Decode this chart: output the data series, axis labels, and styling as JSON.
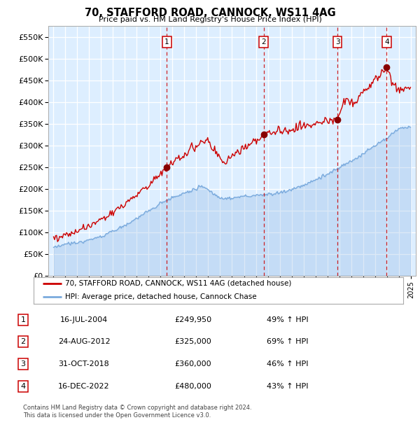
{
  "title": "70, STAFFORD ROAD, CANNOCK, WS11 4AG",
  "subtitle": "Price paid vs. HM Land Registry's House Price Index (HPI)",
  "legend_line1": "70, STAFFORD ROAD, CANNOCK, WS11 4AG (detached house)",
  "legend_line2": "HPI: Average price, detached house, Cannock Chase",
  "footnote1": "Contains HM Land Registry data © Crown copyright and database right 2024.",
  "footnote2": "This data is licensed under the Open Government Licence v3.0.",
  "transactions": [
    {
      "num": 1,
      "label_date": "16-JUL-2004",
      "price": 249950,
      "price_label": "£249,950",
      "pct": "49%",
      "x": 2004.54
    },
    {
      "num": 2,
      "label_date": "24-AUG-2012",
      "price": 325000,
      "price_label": "£325,000",
      "pct": "69%",
      "x": 2012.65
    },
    {
      "num": 3,
      "label_date": "31-OCT-2018",
      "price": 360000,
      "price_label": "£360,000",
      "pct": "46%",
      "x": 2018.83
    },
    {
      "num": 4,
      "label_date": "16-DEC-2022",
      "price": 480000,
      "price_label": "£480,000",
      "pct": "43%",
      "x": 2022.96
    }
  ],
  "red_line_color": "#cc0000",
  "blue_line_color": "#7aaadd",
  "plot_bg": "#ddeeff",
  "grid_color": "#ffffff",
  "dashed_line_color": "#cc0000",
  "marker_color": "#880000",
  "ylim": [
    0,
    575000
  ],
  "yticks": [
    0,
    50000,
    100000,
    150000,
    200000,
    250000,
    300000,
    350000,
    400000,
    450000,
    500000,
    550000
  ],
  "xlim_start": 1994.6,
  "xlim_end": 2025.4
}
